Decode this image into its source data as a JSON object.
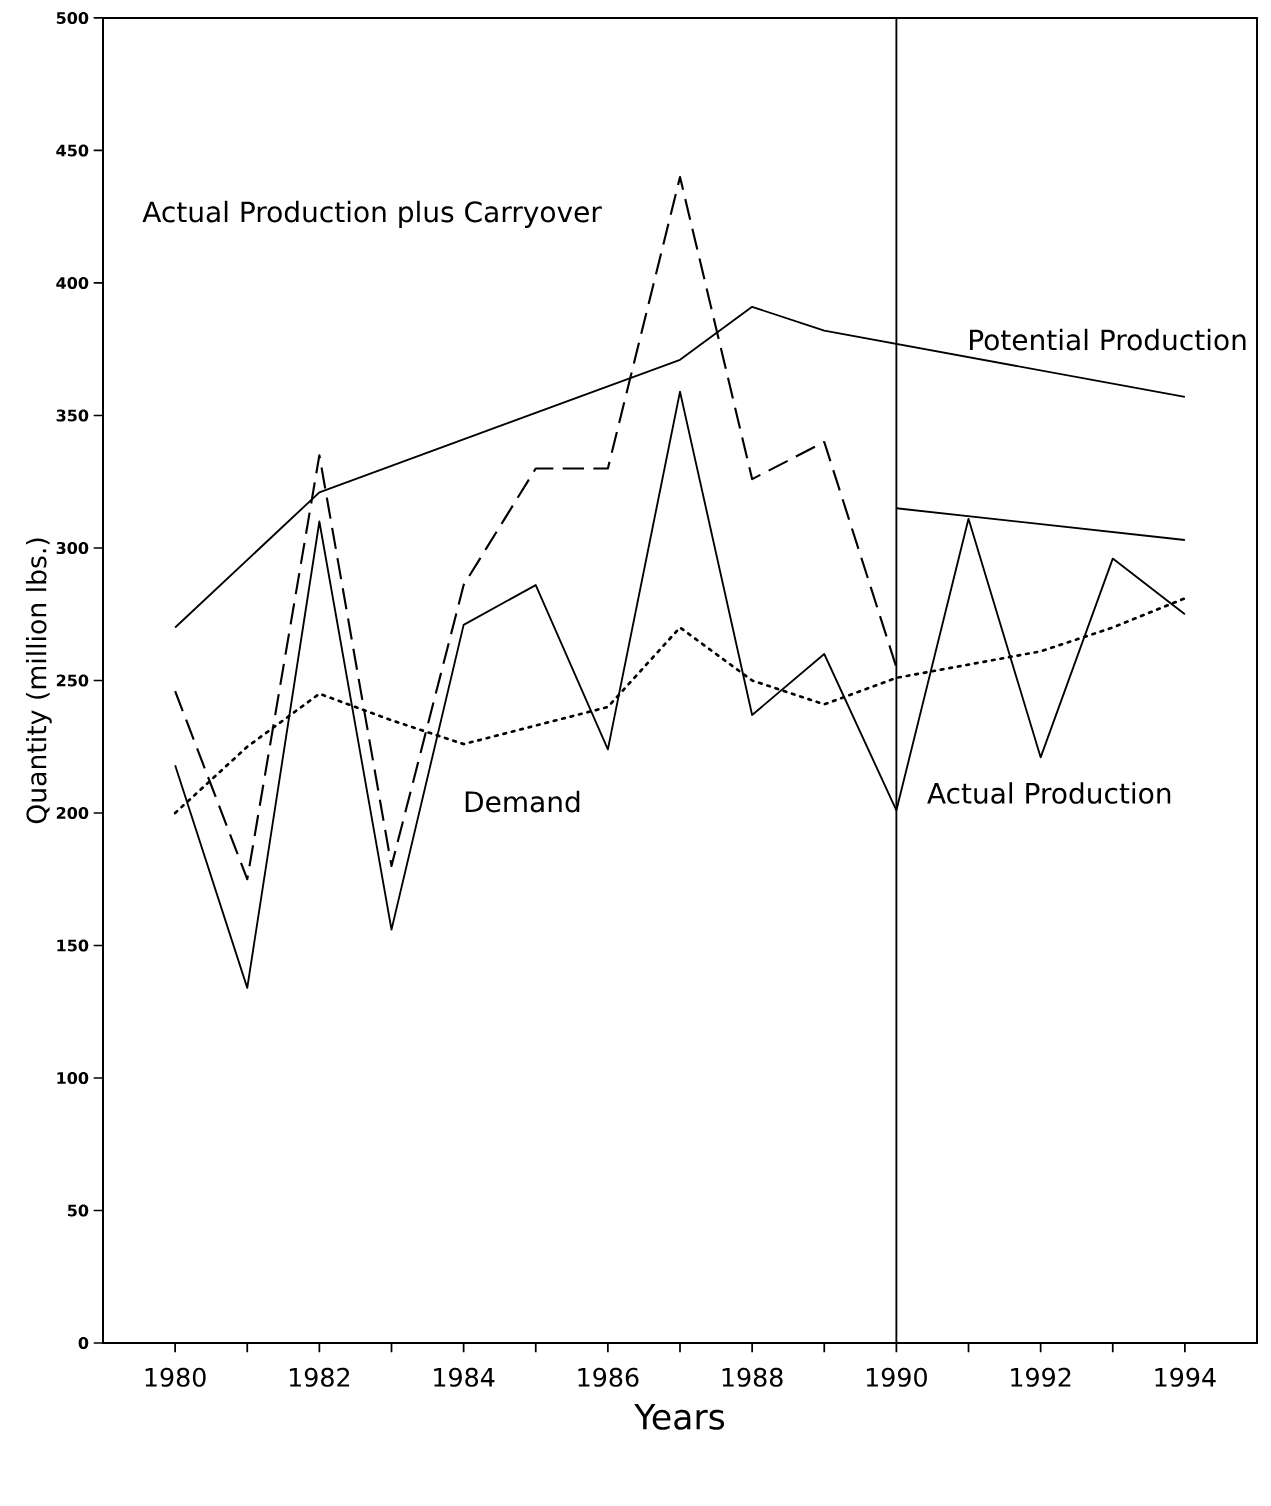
{
  "chart_data": {
    "type": "line",
    "xlabel": "Years",
    "ylabel": "Quantity (million lbs.)",
    "xlim": [
      1979,
      1995
    ],
    "ylim": [
      0,
      500
    ],
    "xticks": [
      1980,
      {
        "value": 1981,
        "label": null
      },
      1982,
      {
        "value": 1983,
        "label": null
      },
      1984,
      {
        "value": 1985,
        "label": null
      },
      1986,
      {
        "value": 1987,
        "label": null
      },
      1988,
      {
        "value": 1989,
        "label": null
      },
      1990,
      {
        "value": 1991,
        "label": null
      },
      1992,
      {
        "value": 1993,
        "label": null
      },
      1994
    ],
    "yticks": [
      0,
      50,
      100,
      150,
      200,
      250,
      300,
      350,
      400,
      450,
      500
    ],
    "series": [
      {
        "name": "Potential Production",
        "color": "#000000",
        "line_style": "solid",
        "x": [
          1980,
          1982,
          1987,
          1988,
          1989,
          1994
        ],
        "values": [
          270,
          321,
          371,
          391,
          382,
          357
        ]
      },
      {
        "color": "#000000",
        "line_style": "solid",
        "x": [
          1990,
          1994
        ],
        "values": [
          315,
          303
        ]
      },
      {
        "name": "Actual Production plus Carryover",
        "color": "#000000",
        "line_style": "dashed",
        "x": [
          1980,
          1981,
          1982,
          1983,
          1984,
          1985,
          1986,
          1987,
          1988,
          1989,
          1990
        ],
        "values": [
          246,
          175,
          335,
          180,
          286,
          330,
          330,
          440,
          326,
          340,
          255
        ]
      },
      {
        "name": "Actual Production",
        "color": "#000000",
        "line_style": "solid",
        "x": [
          1980,
          1981,
          1982,
          1983,
          1984,
          1985,
          1986,
          1987,
          1988,
          1989,
          1990,
          1991,
          1992,
          1993,
          1994
        ],
        "values": [
          218,
          134,
          310,
          156,
          271,
          286,
          224,
          359,
          237,
          260,
          201,
          311,
          221,
          296,
          275
        ]
      },
      {
        "name": "Demand",
        "color": "#000000",
        "line_style": "dotted",
        "x": [
          1980,
          1981,
          1982,
          1983,
          1984,
          1985,
          1986,
          1987,
          1988,
          1989,
          1990,
          1991,
          1992,
          1993,
          1994
        ],
        "values": [
          200,
          225,
          245,
          235,
          226,
          233,
          240,
          270,
          250,
          241,
          251,
          256,
          261,
          270,
          281
        ]
      }
    ],
    "ref_lines": [
      {
        "axis": "x",
        "value": 1990,
        "color": "#000000"
      }
    ]
  }
}
